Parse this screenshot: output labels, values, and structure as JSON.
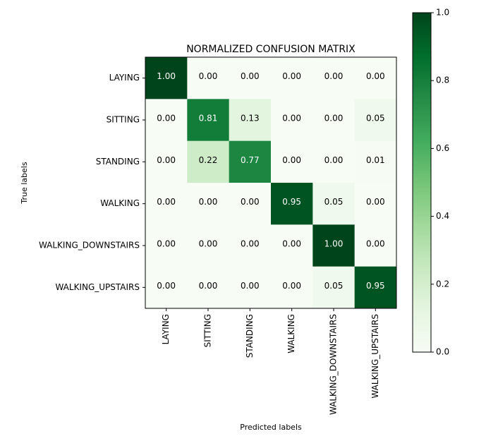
{
  "chart_data": {
    "type": "heatmap",
    "title": "NORMALIZED CONFUSION MATRIX",
    "xlabel": "Predicted labels",
    "ylabel": "True labels",
    "row_labels": [
      "LAYING",
      "SITTING",
      "STANDING",
      "WALKING",
      "WALKING_DOWNSTAIRS",
      "WALKING_UPSTAIRS"
    ],
    "col_labels": [
      "LAYING",
      "SITTING",
      "STANDING",
      "WALKING",
      "WALKING_DOWNSTAIRS",
      "WALKING_UPSTAIRS"
    ],
    "values": [
      [
        1.0,
        0.0,
        0.0,
        0.0,
        0.0,
        0.0
      ],
      [
        0.0,
        0.81,
        0.13,
        0.0,
        0.0,
        0.05
      ],
      [
        0.0,
        0.22,
        0.77,
        0.0,
        0.0,
        0.01
      ],
      [
        0.0,
        0.0,
        0.0,
        0.95,
        0.05,
        0.0
      ],
      [
        0.0,
        0.0,
        0.0,
        0.0,
        1.0,
        0.0
      ],
      [
        0.0,
        0.0,
        0.0,
        0.0,
        0.05,
        0.95
      ]
    ],
    "cell_labels": [
      [
        "1.00",
        "0.00",
        "0.00",
        "0.00",
        "0.00",
        "0.00"
      ],
      [
        "0.00",
        "0.81",
        "0.13",
        "0.00",
        "0.00",
        "0.05"
      ],
      [
        "0.00",
        "0.22",
        "0.77",
        "0.00",
        "0.00",
        "0.01"
      ],
      [
        "0.00",
        "0.00",
        "0.00",
        "0.95",
        "0.05",
        "0.00"
      ],
      [
        "0.00",
        "0.00",
        "0.00",
        "0.00",
        "1.00",
        "0.00"
      ],
      [
        "0.00",
        "0.00",
        "0.00",
        "0.00",
        "0.05",
        "0.95"
      ]
    ],
    "colormap": "Greens",
    "colorbar": {
      "range": [
        0.0,
        1.0
      ],
      "ticks": [
        0.0,
        0.2,
        0.4,
        0.6,
        0.8,
        1.0
      ],
      "tick_labels": [
        "0.0",
        "0.2",
        "0.4",
        "0.6",
        "0.8",
        "1.0"
      ]
    },
    "grid": false
  }
}
